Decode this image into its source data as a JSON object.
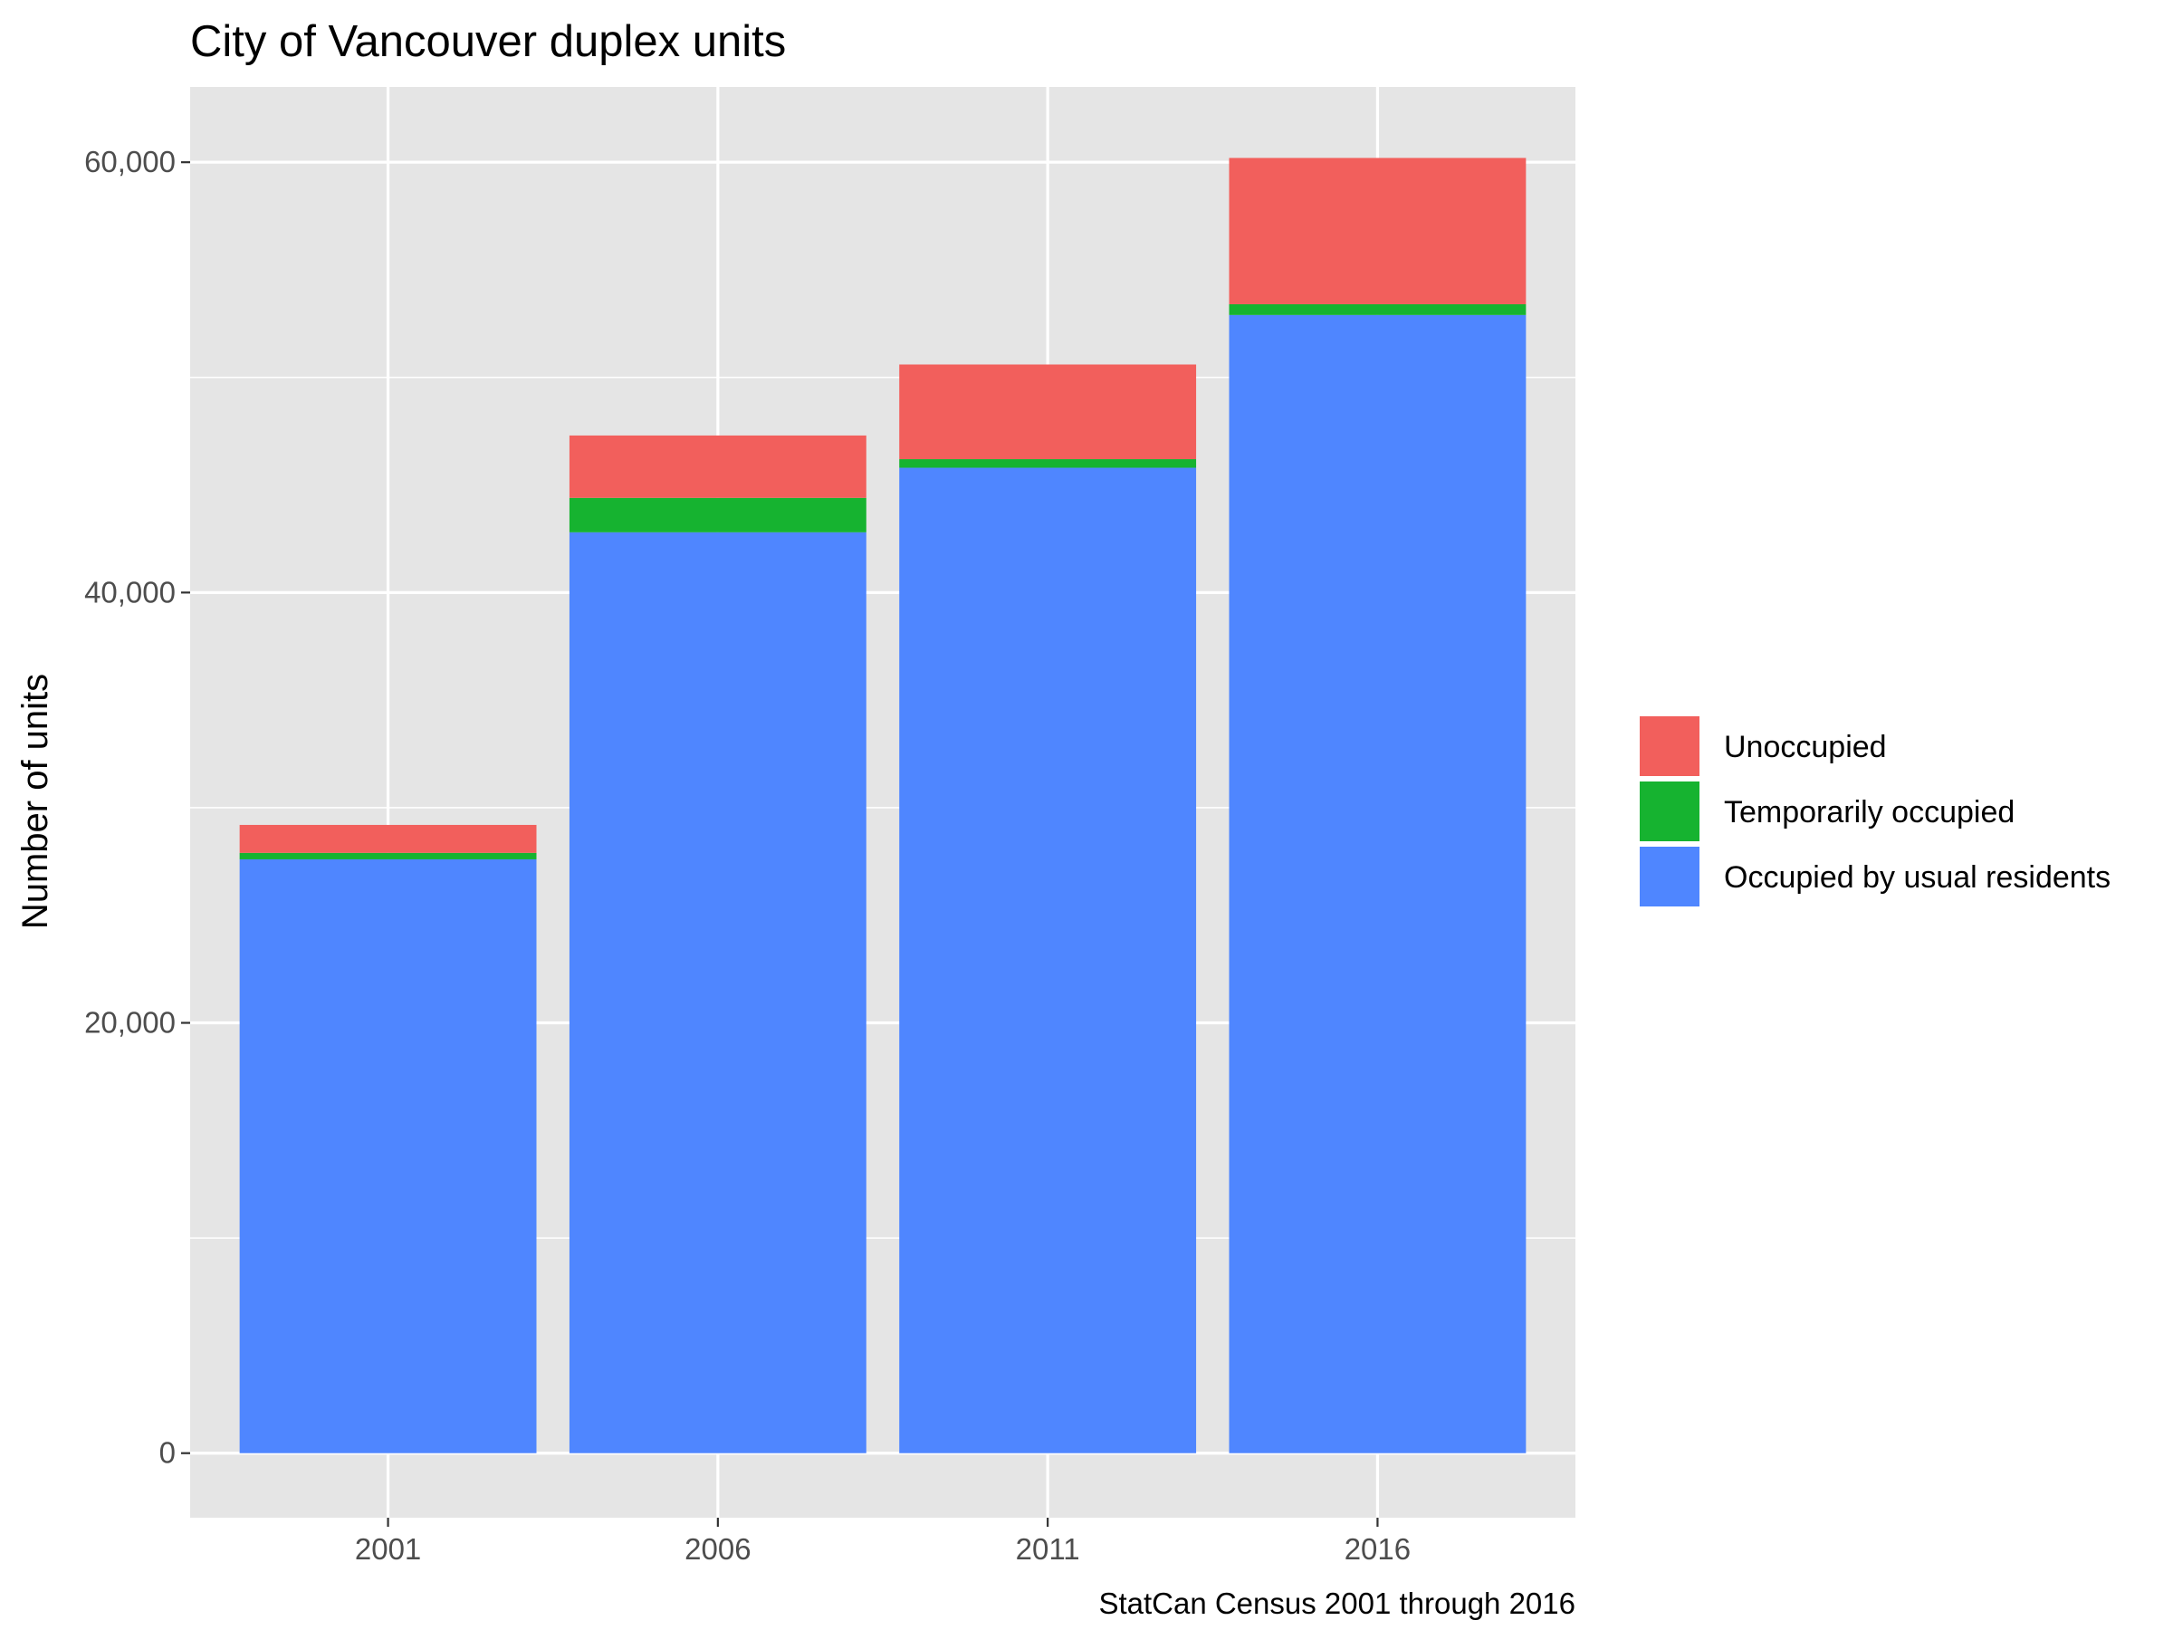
{
  "chart_data": {
    "type": "bar",
    "stacked": true,
    "title": "City of Vancouver duplex units",
    "xlabel": "",
    "ylabel": "Number of units",
    "caption": "StatCan Census 2001 through 2016",
    "categories": [
      "2001",
      "2006",
      "2011",
      "2016"
    ],
    "ylim": [
      -3000,
      63500
    ],
    "y_ticks": [
      0,
      20000,
      40000,
      60000
    ],
    "y_tick_labels": [
      "0",
      "20,000",
      "40,000",
      "60,000"
    ],
    "y_minor_ticks": [
      10000,
      30000,
      50000
    ],
    "grid": true,
    "legend_position": "right",
    "series": [
      {
        "name": "Occupied by usual residents",
        "color": "#4F86FF",
        "values": [
          27600,
          42800,
          45800,
          52900
        ]
      },
      {
        "name": "Temporarily occupied",
        "color": "#16B330",
        "values": [
          300,
          1600,
          400,
          500
        ]
      },
      {
        "name": "Unoccupied",
        "color": "#F25F5C",
        "values": [
          1300,
          2900,
          4400,
          6800
        ]
      }
    ],
    "legend_order": [
      "Unoccupied",
      "Temporarily occupied",
      "Occupied by usual residents"
    ],
    "colors": {
      "panel": "#E5E5E5",
      "grid": "#FFFFFF",
      "tick": "#333333",
      "tick_label": "#4D4D4D"
    }
  }
}
